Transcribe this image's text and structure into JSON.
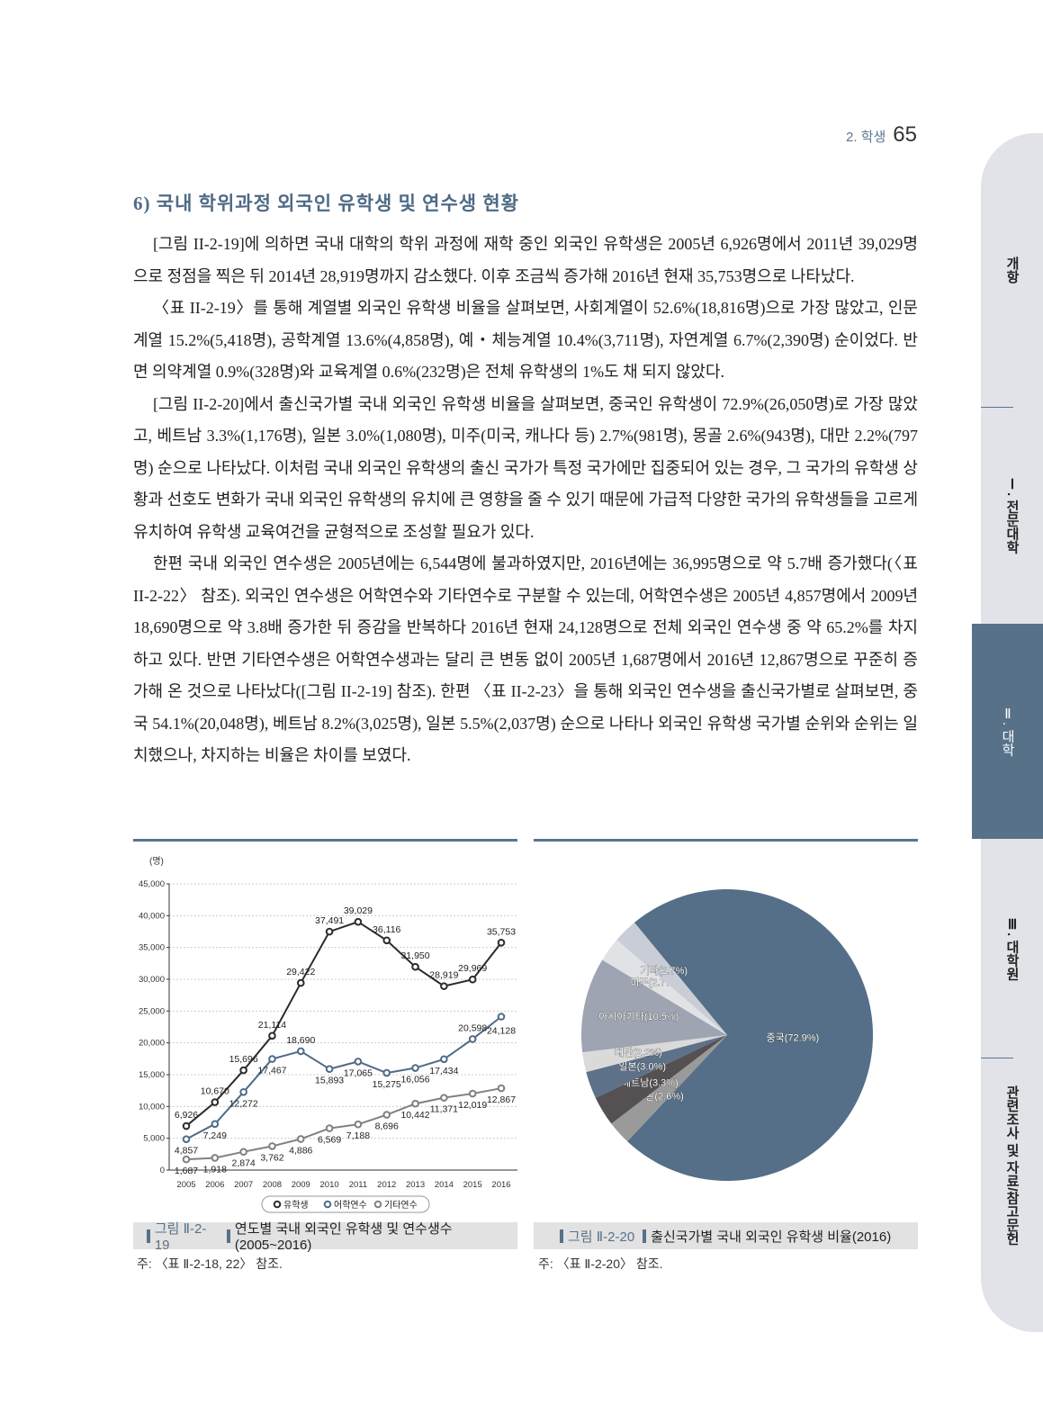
{
  "header": {
    "section": "2. 학생",
    "page_number": "65"
  },
  "side_tabs": [
    {
      "label": "개항",
      "active": false
    },
    {
      "label": "Ⅰ. 전문대학",
      "active": false
    },
    {
      "label": "Ⅱ. 대학",
      "active": true
    },
    {
      "label": "Ⅲ. 대학원",
      "active": false
    },
    {
      "label": "관련조사 및 자료/참고문헌",
      "active": false
    }
  ],
  "section_title": "6) 국내 학위과정 외국인 유학생 및 연수생 현황",
  "paragraphs": [
    "[그림 II-2-19]에 의하면 국내 대학의 학위 과정에 재학 중인 외국인 유학생은 2005년 6,926명에서 2011년 39,029명으로 정점을 찍은 뒤 2014년 28,919명까지 감소했다. 이후 조금씩 증가해 2016년 현재 35,753명으로 나타났다.",
    "〈표 II-2-19〉를 통해 계열별 외국인 유학생 비율을 살펴보면, 사회계열이 52.6%(18,816명)으로 가장 많았고, 인문계열 15.2%(5,418명), 공학계열 13.6%(4,858명), 예・체능계열 10.4%(3,711명), 자연계열 6.7%(2,390명) 순이었다. 반면 의약계열 0.9%(328명)와 교육계열 0.6%(232명)은 전체 유학생의 1%도 채 되지 않았다.",
    "[그림 II-2-20]에서 출신국가별 국내 외국인 유학생 비율을 살펴보면, 중국인 유학생이 72.9%(26,050명)로 가장 많았고, 베트남 3.3%(1,176명), 일본 3.0%(1,080명), 미주(미국, 캐나다 등) 2.7%(981명), 몽골 2.6%(943명), 대만 2.2%(797명) 순으로 나타났다. 이처럼 국내 외국인 유학생의 출신 국가가 특정 국가에만 집중되어 있는 경우, 그 국가의 유학생 상황과 선호도 변화가 국내 외국인 유학생의 유치에 큰 영향을 줄 수 있기 때문에 가급적 다양한 국가의 유학생들을 고르게 유치하여 유학생 교육여건을 균형적으로 조성할 필요가 있다.",
    "한편 국내 외국인 연수생은 2005년에는 6,544명에 불과하였지만, 2016년에는 36,995명으로 약 5.7배 증가했다(〈표 II-2-22〉 참조). 외국인 연수생은 어학연수와 기타연수로 구분할 수 있는데, 어학연수생은 2005년 4,857명에서 2009년 18,690명으로 약 3.8배 증가한 뒤 증감을 반복하다 2016년 현재 24,128명으로 전체 외국인 연수생 중 약 65.2%를 차지하고 있다. 반면 기타연수생은 어학연수생과는 달리 큰 변동 없이 2005년 1,687명에서 2016년 12,867명으로 꾸준히 증가해 온 것으로 나타났다([그림 II-2-19] 참조). 한편 〈표 II-2-23〉을 통해 외국인 연수생을 출신국가별로 살펴보면, 중국 54.1%(20,048명), 베트남 8.2%(3,025명), 일본 5.5%(2,037명) 순으로 나타나 외국인 유학생 국가별 순위와 순위는 일치했으나, 차지하는 비율은 차이를 보였다."
  ],
  "figures": [
    {
      "caption_num": "그림 Ⅱ-2-19",
      "caption_title": "연도별 국내 외국인 유학생 및 연수생수(2005~2016)",
      "note": "주: 〈표 Ⅱ-2-18, 22〉 참조."
    },
    {
      "caption_num": "그림 Ⅱ-2-20",
      "caption_title": "출신국가별 국내 외국인 유학생 비율(2016)",
      "note": "주: 〈표 Ⅱ-2-20〉 참조."
    }
  ],
  "chart_data": [
    {
      "type": "line",
      "ylabel": "(명)",
      "ylim": [
        0,
        45000
      ],
      "yticks": [
        "0",
        "5,000",
        "10,000",
        "15,000",
        "20,000",
        "25,000",
        "30,000",
        "35,000",
        "40,000",
        "45,000"
      ],
      "grid": true,
      "legend_position": "bottom",
      "x": [
        "2005",
        "2006",
        "2007",
        "2008",
        "2009",
        "2010",
        "2011",
        "2012",
        "2013",
        "2014",
        "2015",
        "2016"
      ],
      "series": [
        {
          "name": "유학생",
          "color": "#2b2b2b",
          "values": [
            6926,
            10670,
            15696,
            21114,
            29422,
            37491,
            39029,
            36116,
            31950,
            28919,
            29969,
            35753
          ],
          "labels": [
            "6,926",
            "10,670",
            "15,696",
            "21,114",
            "29,422",
            "37,491",
            "39,029",
            "36,116",
            "31,950",
            "28,919",
            "29,969",
            "35,753"
          ]
        },
        {
          "name": "어학연수",
          "color": "#4f6b86",
          "values": [
            4857,
            7249,
            12272,
            17467,
            18690,
            15893,
            17065,
            15275,
            16056,
            17434,
            20598,
            24128
          ],
          "labels": [
            "4,857",
            "7,249",
            "12,272",
            "17,467",
            "18,690",
            "15,893",
            "17,065",
            "15,275",
            "16,056",
            "17,434",
            "20,598",
            "24,128"
          ]
        },
        {
          "name": "기타연수",
          "color": "#808080",
          "values": [
            1687,
            1918,
            2874,
            3762,
            4886,
            6569,
            7188,
            8696,
            10442,
            11371,
            12019,
            12867
          ],
          "labels": [
            "1,687",
            "1,918",
            "2,874",
            "3,762",
            "4,886",
            "6,569",
            "7,188",
            "8,696",
            "10,442",
            "11,371",
            "12,019",
            "12,867"
          ]
        }
      ]
    },
    {
      "type": "pie",
      "slices": [
        {
          "label": "중국(72.9%)",
          "value": 72.9,
          "color": "#546f87"
        },
        {
          "label": "몽골(2.6%)",
          "value": 2.6,
          "color": "#9a9a9a"
        },
        {
          "label": "베트남(3.3%)",
          "value": 3.3,
          "color": "#555153"
        },
        {
          "label": "일본(3.0%)",
          "value": 3.0,
          "color": "#5d7189"
        },
        {
          "label": "대만(2.2%)",
          "value": 2.2,
          "color": "#dadada"
        },
        {
          "label": "아시아기타(10.5%)",
          "value": 10.5,
          "color": "#9ea4b1"
        },
        {
          "label": "미주(2.7%)",
          "value": 2.7,
          "color": "#e1e2e6"
        },
        {
          "label": "기타(2.7%)",
          "value": 2.7,
          "color": "#c9cdd5"
        }
      ]
    }
  ]
}
